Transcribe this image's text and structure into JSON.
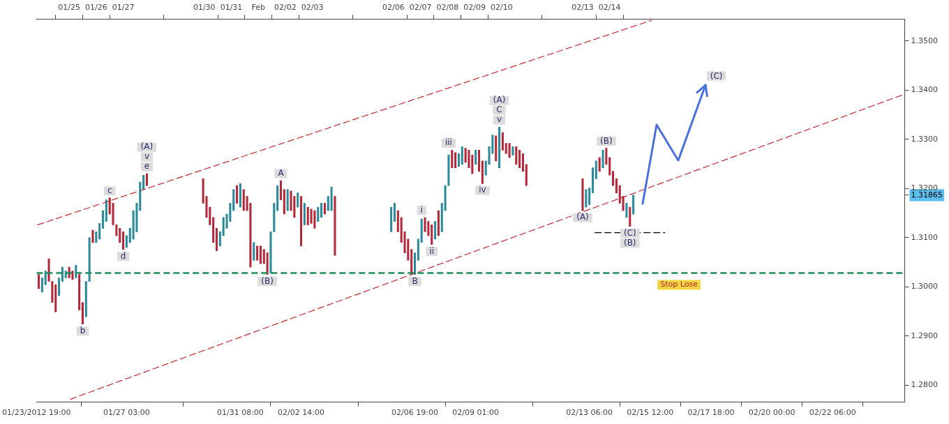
{
  "chart_data": {
    "type": "candlestick",
    "x": [
      "2012-01-23T21:00",
      "2012-01-24T00:00",
      "2012-01-24T03:00",
      "2012-01-24T06:00",
      "2012-01-24T09:00",
      "2012-01-24T12:00",
      "2012-01-24T15:00",
      "2012-01-24T18:00",
      "2012-01-24T21:00",
      "2012-01-25T00:00",
      "2012-01-25T03:00",
      "2012-01-25T06:00",
      "2012-01-25T09:00",
      "2012-01-25T12:00",
      "2012-01-25T15:00",
      "2012-01-25T18:00",
      "2012-01-25T21:00",
      "2012-01-26T00:00",
      "2012-01-26T03:00",
      "2012-01-26T06:00",
      "2012-01-26T09:00",
      "2012-01-26T12:00",
      "2012-01-26T15:00",
      "2012-01-26T18:00",
      "2012-01-26T21:00",
      "2012-01-27T00:00",
      "2012-01-27T03:00",
      "2012-01-27T06:00",
      "2012-01-27T09:00",
      "2012-01-27T12:00",
      "2012-01-27T15:00",
      "2012-01-27T18:00",
      "2012-01-27T21:00",
      "2012-01-29T23:00",
      "2012-01-30T02:00",
      "2012-01-30T05:00",
      "2012-01-30T08:00",
      "2012-01-30T11:00",
      "2012-01-30T14:00",
      "2012-01-30T17:00",
      "2012-01-30T20:00",
      "2012-01-30T23:00",
      "2012-01-31T02:00",
      "2012-01-31T05:00",
      "2012-01-31T08:00",
      "2012-01-31T11:00",
      "2012-01-31T14:00",
      "2012-01-31T17:00",
      "2012-01-31T20:00",
      "2012-01-31T23:00",
      "2012-02-01T02:00",
      "2012-02-01T05:00",
      "2012-02-01T08:00",
      "2012-02-01T11:00",
      "2012-02-01T14:00",
      "2012-02-01T17:00",
      "2012-02-01T20:00",
      "2012-02-01T23:00",
      "2012-02-02T02:00",
      "2012-02-02T05:00",
      "2012-02-02T08:00",
      "2012-02-02T11:00",
      "2012-02-02T14:00",
      "2012-02-02T17:00",
      "2012-02-02T20:00",
      "2012-02-02T23:00",
      "2012-02-03T02:00",
      "2012-02-03T05:00",
      "2012-02-03T08:00",
      "2012-02-03T11:00",
      "2012-02-03T14:00",
      "2012-02-03T17:00",
      "2012-02-03T20:00",
      "2012-02-05T22:00",
      "2012-02-06T01:00",
      "2012-02-06T04:00",
      "2012-02-06T07:00",
      "2012-02-06T10:00",
      "2012-02-06T13:00",
      "2012-02-06T16:00",
      "2012-02-06T19:00",
      "2012-02-06T22:00",
      "2012-02-07T01:00",
      "2012-02-07T04:00",
      "2012-02-07T07:00",
      "2012-02-07T10:00",
      "2012-02-07T13:00",
      "2012-02-07T16:00",
      "2012-02-07T19:00",
      "2012-02-07T22:00",
      "2012-02-08T01:00",
      "2012-02-08T04:00",
      "2012-02-08T07:00",
      "2012-02-08T10:00",
      "2012-02-08T13:00",
      "2012-02-08T16:00",
      "2012-02-08T19:00",
      "2012-02-08T22:00",
      "2012-02-09T01:00",
      "2012-02-09T04:00",
      "2012-02-09T07:00",
      "2012-02-09T10:00",
      "2012-02-09T13:00",
      "2012-02-09T16:00",
      "2012-02-09T19:00",
      "2012-02-09T22:00",
      "2012-02-10T01:00",
      "2012-02-10T04:00",
      "2012-02-10T07:00",
      "2012-02-10T10:00",
      "2012-02-10T13:00",
      "2012-02-10T16:00",
      "2012-02-10T19:00",
      "2012-02-10T22:00",
      "2012-02-13T00:00",
      "2012-02-13T03:00",
      "2012-02-13T06:00",
      "2012-02-13T09:00",
      "2012-02-13T12:00",
      "2012-02-13T15:00",
      "2012-02-13T18:00",
      "2012-02-13T21:00",
      "2012-02-14T00:00",
      "2012-02-14T03:00",
      "2012-02-14T06:00",
      "2012-02-14T09:00",
      "2012-02-14T12:00",
      "2012-02-14T15:00",
      "2012-02-14T18:00",
      "2012-02-14T21:00"
    ],
    "ohlc": [
      [
        1.3025,
        1.3025,
        1.2996,
        1.2996
      ],
      [
        1.2989,
        1.3018,
        1.2989,
        1.3018
      ],
      [
        1.3004,
        1.3032,
        1.3004,
        1.3032
      ],
      [
        1.3057,
        1.3057,
        1.3011,
        1.3011
      ],
      [
        1.3011,
        1.3011,
        1.2968,
        1.2968
      ],
      [
        1.3004,
        1.3004,
        1.2949,
        1.2949
      ],
      [
        1.2982,
        1.3018,
        1.2982,
        1.3018
      ],
      [
        1.3011,
        1.304,
        1.3011,
        1.304
      ],
      [
        1.3018,
        1.3032,
        1.3018,
        1.3032
      ],
      [
        1.304,
        1.304,
        1.3018,
        1.3018
      ],
      [
        1.3032,
        1.3032,
        1.3015,
        1.3015
      ],
      [
        1.3018,
        1.3044,
        1.3018,
        1.3044
      ],
      [
        1.3025,
        1.3025,
        1.2953,
        1.2953
      ],
      [
        1.2968,
        1.2968,
        1.2924,
        1.2924
      ],
      [
        1.2939,
        1.3011,
        1.2939,
        1.3011
      ],
      [
        1.3011,
        1.31,
        1.3011,
        1.31
      ],
      [
        1.3115,
        1.3115,
        1.309,
        1.309
      ],
      [
        1.309,
        1.3112,
        1.309,
        1.3112
      ],
      [
        1.3097,
        1.3129,
        1.3097,
        1.3129
      ],
      [
        1.3119,
        1.3155,
        1.3119,
        1.3155
      ],
      [
        1.3133,
        1.3177,
        1.3133,
        1.3177
      ],
      [
        1.3181,
        1.3181,
        1.3148,
        1.3148
      ],
      [
        1.317,
        1.317,
        1.3126,
        1.3126
      ],
      [
        1.3126,
        1.3126,
        1.3104,
        1.3104
      ],
      [
        1.3119,
        1.3119,
        1.309,
        1.309
      ],
      [
        1.3112,
        1.3112,
        1.3076,
        1.3076
      ],
      [
        1.308,
        1.3104,
        1.308,
        1.3104
      ],
      [
        1.309,
        1.3119,
        1.309,
        1.3119
      ],
      [
        1.3097,
        1.3155,
        1.3097,
        1.3155
      ],
      [
        1.3112,
        1.317,
        1.3112,
        1.317
      ],
      [
        1.3155,
        1.3213,
        1.3155,
        1.3213
      ],
      [
        1.3198,
        1.3227,
        1.3198,
        1.3227
      ],
      [
        1.323,
        1.323,
        1.3206,
        1.3206
      ],
      [
        1.322,
        1.322,
        1.317,
        1.317
      ],
      [
        1.3184,
        1.3184,
        1.3141,
        1.3141
      ],
      [
        1.3162,
        1.3162,
        1.3126,
        1.3126
      ],
      [
        1.3141,
        1.3141,
        1.309,
        1.309
      ],
      [
        1.3119,
        1.3119,
        1.3073,
        1.3073
      ],
      [
        1.3083,
        1.3112,
        1.3083,
        1.3112
      ],
      [
        1.3104,
        1.3141,
        1.3104,
        1.3141
      ],
      [
        1.3119,
        1.3148,
        1.3119,
        1.3148
      ],
      [
        1.3133,
        1.317,
        1.3133,
        1.317
      ],
      [
        1.3155,
        1.3198,
        1.3155,
        1.3198
      ],
      [
        1.3206,
        1.3206,
        1.317,
        1.317
      ],
      [
        1.3162,
        1.321,
        1.3162,
        1.321
      ],
      [
        1.3198,
        1.3198,
        1.3155,
        1.3155
      ],
      [
        1.3184,
        1.3184,
        1.3155,
        1.3155
      ],
      [
        1.317,
        1.317,
        1.304,
        1.304
      ],
      [
        1.3054,
        1.309,
        1.3054,
        1.309
      ],
      [
        1.3083,
        1.3083,
        1.3054,
        1.3054
      ],
      [
        1.3083,
        1.3083,
        1.3047,
        1.3047
      ],
      [
        1.3076,
        1.3076,
        1.3047,
        1.3047
      ],
      [
        1.3069,
        1.3069,
        1.3025,
        1.3025
      ],
      [
        1.3028,
        1.3112,
        1.3028,
        1.3112
      ],
      [
        1.3112,
        1.317,
        1.3112,
        1.317
      ],
      [
        1.3155,
        1.3206,
        1.3155,
        1.3206
      ],
      [
        1.3216,
        1.3216,
        1.3177,
        1.3177
      ],
      [
        1.3198,
        1.3198,
        1.3148,
        1.3148
      ],
      [
        1.3155,
        1.3198,
        1.3155,
        1.3198
      ],
      [
        1.3195,
        1.3195,
        1.3155,
        1.3155
      ],
      [
        1.3184,
        1.3184,
        1.3141,
        1.3141
      ],
      [
        1.3162,
        1.3191,
        1.3162,
        1.3191
      ],
      [
        1.3184,
        1.3184,
        1.3083,
        1.3083
      ],
      [
        1.3126,
        1.317,
        1.3126,
        1.317
      ],
      [
        1.3162,
        1.3162,
        1.3126,
        1.3126
      ],
      [
        1.3158,
        1.3158,
        1.3129,
        1.3129
      ],
      [
        1.3155,
        1.3155,
        1.3119,
        1.3119
      ],
      [
        1.3133,
        1.3162,
        1.3133,
        1.3162
      ],
      [
        1.3141,
        1.317,
        1.3141,
        1.317
      ],
      [
        1.317,
        1.317,
        1.3148,
        1.3148
      ],
      [
        1.3155,
        1.3184,
        1.3155,
        1.3184
      ],
      [
        1.3155,
        1.3203,
        1.3155,
        1.3203
      ],
      [
        1.3184,
        1.3184,
        1.3064,
        1.3064
      ],
      [
        1.3112,
        1.3162,
        1.3112,
        1.3162
      ],
      [
        1.3133,
        1.317,
        1.3133,
        1.317
      ],
      [
        1.3155,
        1.3155,
        1.3112,
        1.3112
      ],
      [
        1.3141,
        1.3141,
        1.309,
        1.309
      ],
      [
        1.3112,
        1.3112,
        1.3069,
        1.3069
      ],
      [
        1.3097,
        1.3097,
        1.3054,
        1.3054
      ],
      [
        1.3076,
        1.3076,
        1.3025,
        1.3025
      ],
      [
        1.3025,
        1.3069,
        1.3025,
        1.3069
      ],
      [
        1.3054,
        1.3097,
        1.3054,
        1.3097
      ],
      [
        1.309,
        1.3138,
        1.309,
        1.3138
      ],
      [
        1.3141,
        1.3141,
        1.3112,
        1.3112
      ],
      [
        1.3133,
        1.3133,
        1.3104,
        1.3104
      ],
      [
        1.3126,
        1.3126,
        1.3086,
        1.3086
      ],
      [
        1.3097,
        1.3133,
        1.3097,
        1.3133
      ],
      [
        1.3155,
        1.3155,
        1.3104,
        1.3104
      ],
      [
        1.3112,
        1.317,
        1.3112,
        1.317
      ],
      [
        1.3155,
        1.3206,
        1.3155,
        1.3206
      ],
      [
        1.3206,
        1.3268,
        1.3206,
        1.3268
      ],
      [
        1.3278,
        1.3278,
        1.3242,
        1.3242
      ],
      [
        1.3273,
        1.3273,
        1.3242,
        1.3242
      ],
      [
        1.3245,
        1.3271,
        1.3245,
        1.3271
      ],
      [
        1.3249,
        1.3285,
        1.3249,
        1.3285
      ],
      [
        1.3282,
        1.3282,
        1.3253,
        1.3253
      ],
      [
        1.3278,
        1.3278,
        1.3242,
        1.3242
      ],
      [
        1.3268,
        1.3268,
        1.323,
        1.323
      ],
      [
        1.3249,
        1.3278,
        1.3249,
        1.3278
      ],
      [
        1.3278,
        1.3278,
        1.3235,
        1.3235
      ],
      [
        1.3256,
        1.3256,
        1.321,
        1.321
      ],
      [
        1.3227,
        1.3256,
        1.3227,
        1.3256
      ],
      [
        1.3249,
        1.3285,
        1.3249,
        1.3285
      ],
      [
        1.3271,
        1.3309,
        1.3271,
        1.3309
      ],
      [
        1.3307,
        1.3307,
        1.3256,
        1.3256
      ],
      [
        1.3242,
        1.3325,
        1.3242,
        1.3325
      ],
      [
        1.3314,
        1.3314,
        1.3278,
        1.3278
      ],
      [
        1.3292,
        1.3292,
        1.3271,
        1.3271
      ],
      [
        1.3292,
        1.3292,
        1.3263,
        1.3263
      ],
      [
        1.3268,
        1.3285,
        1.3268,
        1.3285
      ],
      [
        1.3285,
        1.3285,
        1.3249,
        1.3249
      ],
      [
        1.3278,
        1.3278,
        1.3242,
        1.3242
      ],
      [
        1.3271,
        1.3271,
        1.3235,
        1.3235
      ],
      [
        1.3249,
        1.3249,
        1.3206,
        1.3206
      ],
      [
        1.322,
        1.322,
        1.3155,
        1.3155
      ],
      [
        1.3162,
        1.3198,
        1.3162,
        1.3198
      ],
      [
        1.3167,
        1.3201,
        1.3167,
        1.3201
      ],
      [
        1.3191,
        1.3242,
        1.3191,
        1.3242
      ],
      [
        1.322,
        1.3256,
        1.322,
        1.3256
      ],
      [
        1.3263,
        1.3263,
        1.3235,
        1.3235
      ],
      [
        1.3242,
        1.3278,
        1.3242,
        1.3278
      ],
      [
        1.3282,
        1.3282,
        1.3249,
        1.3249
      ],
      [
        1.3263,
        1.3263,
        1.3227,
        1.3227
      ],
      [
        1.3235,
        1.3235,
        1.3206,
        1.3206
      ],
      [
        1.322,
        1.322,
        1.3191,
        1.3191
      ],
      [
        1.3206,
        1.3206,
        1.317,
        1.317
      ],
      [
        1.3184,
        1.3184,
        1.3155,
        1.3155
      ],
      [
        1.3141,
        1.317,
        1.3141,
        1.317
      ],
      [
        1.3162,
        1.3162,
        1.3123,
        1.3123
      ],
      [
        1.3148,
        1.31865,
        1.3148,
        1.31865
      ]
    ],
    "colors": [
      "#b3283a",
      "#2b8a9a",
      "#2b8a9a",
      "#b3283a",
      "#b3283a",
      "#b3283a",
      "#2b8a9a",
      "#2b8a9a",
      "#2b8a9a",
      "#b3283a",
      "#b3283a",
      "#2b8a9a",
      "#b3283a",
      "#b3283a",
      "#2b8a9a",
      "#2b8a9a",
      "#b3283a",
      "#2b8a9a",
      "#2b8a9a",
      "#2b8a9a",
      "#2b8a9a",
      "#b3283a",
      "#b3283a",
      "#b3283a",
      "#b3283a",
      "#b3283a",
      "#2b8a9a",
      "#2b8a9a",
      "#2b8a9a",
      "#2b8a9a",
      "#2b8a9a",
      "#2b8a9a",
      "#b3283a",
      "#b3283a",
      "#b3283a",
      "#b3283a",
      "#b3283a",
      "#b3283a",
      "#2b8a9a",
      "#2b8a9a",
      "#2b8a9a",
      "#2b8a9a",
      "#2b8a9a",
      "#b3283a",
      "#2b8a9a",
      "#b3283a",
      "#b3283a",
      "#b3283a",
      "#2b8a9a",
      "#b3283a",
      "#b3283a",
      "#b3283a",
      "#b3283a",
      "#2b8a9a",
      "#2b8a9a",
      "#2b8a9a",
      "#b3283a",
      "#b3283a",
      "#2b8a9a",
      "#b3283a",
      "#b3283a",
      "#2b8a9a",
      "#b3283a",
      "#2b8a9a",
      "#b3283a",
      "#b3283a",
      "#b3283a",
      "#2b8a9a",
      "#2b8a9a",
      "#b3283a",
      "#2b8a9a",
      "#2b8a9a",
      "#b3283a",
      "#2b8a9a",
      "#2b8a9a",
      "#b3283a",
      "#b3283a",
      "#b3283a",
      "#b3283a",
      "#b3283a",
      "#2b8a9a",
      "#2b8a9a",
      "#2b8a9a",
      "#b3283a",
      "#b3283a",
      "#b3283a",
      "#2b8a9a",
      "#b3283a",
      "#2b8a9a",
      "#2b8a9a",
      "#2b8a9a",
      "#b3283a",
      "#b3283a",
      "#2b8a9a",
      "#2b8a9a",
      "#b3283a",
      "#b3283a",
      "#b3283a",
      "#2b8a9a",
      "#b3283a",
      "#b3283a",
      "#2b8a9a",
      "#2b8a9a",
      "#2b8a9a",
      "#b3283a",
      "#2b8a9a",
      "#b3283a",
      "#b3283a",
      "#b3283a",
      "#2b8a9a",
      "#b3283a",
      "#b3283a",
      "#b3283a",
      "#b3283a",
      "#b3283a",
      "#2b8a9a",
      "#2b8a9a",
      "#2b8a9a",
      "#2b8a9a",
      "#b3283a",
      "#2b8a9a",
      "#b3283a",
      "#b3283a",
      "#b3283a",
      "#b3283a",
      "#b3283a",
      "#b3283a",
      "#2b8a9a",
      "#b3283a",
      "#2b8a9a"
    ],
    "series": [
      {
        "type": "line",
        "x": [
          "2012-01-23T20:00",
          "2012-02-15T13:00"
        ],
        "values": [
          1.3126,
          1.3542
        ],
        "color": "#c0282d",
        "line_style": "dashed"
      },
      {
        "type": "line",
        "x": [
          "2012-01-25T01:00",
          "2012-02-24T22:00"
        ],
        "values": [
          1.2771,
          1.3392
        ],
        "color": "#c0282d",
        "line_style": "dashed"
      },
      {
        "type": "line",
        "x": [
          "2012-02-13T11:00",
          "2012-02-16T01:00"
        ],
        "values": [
          1.311,
          1.311
        ],
        "color": "#000000",
        "line_style": "dashed"
      }
    ],
    "ref_lines": [
      {
        "axis": "y",
        "value": 1.3028,
        "label": "Stop Lose",
        "color": "#1e8c5a",
        "line_style": "dashed"
      }
    ],
    "annotations": [
      {
        "text": "(A)",
        "x": "2012-01-27T21:00",
        "y": 1.323
      },
      {
        "text": "v",
        "x": "2012-01-27T21:00",
        "y": 1.323
      },
      {
        "text": "e",
        "x": "2012-01-27T21:00",
        "y": 1.323
      },
      {
        "text": "c",
        "x": "2012-01-26T12:00",
        "y": 1.3181
      },
      {
        "text": "d",
        "x": "2012-01-27T00:00",
        "y": 1.3076
      },
      {
        "text": "b",
        "x": "2012-01-25T12:00",
        "y": 1.2924
      },
      {
        "text": "(B)",
        "x": "2012-02-01T08:00",
        "y": 1.3025
      },
      {
        "text": "A",
        "x": "2012-02-01T20:00",
        "y": 1.3216
      },
      {
        "text": "B",
        "x": "2012-02-06T19:00",
        "y": 1.3025
      },
      {
        "text": "i",
        "x": "2012-02-07T01:00",
        "y": 1.3138
      },
      {
        "text": "ii",
        "x": "2012-02-07T10:00",
        "y": 1.3086
      },
      {
        "text": "iii",
        "x": "2012-02-08T01:00",
        "y": 1.3268
      },
      {
        "text": "iv",
        "x": "2012-02-09T07:00",
        "y": 1.321
      },
      {
        "text": "(A)",
        "x": "2012-02-09T22:00",
        "y": 1.3325
      },
      {
        "text": "C",
        "x": "2012-02-09T22:00",
        "y": 1.3325
      },
      {
        "text": "v",
        "x": "2012-02-09T22:00",
        "y": 1.3325
      },
      {
        "text": "(A)",
        "x": "2012-02-13T00:00",
        "y": 1.3155
      },
      {
        "text": "(B)",
        "x": "2012-02-13T21:00",
        "y": 1.3282
      },
      {
        "text": "(C)",
        "x": "2012-02-14T18:00",
        "y": 1.3123
      },
      {
        "text": "(B)",
        "x": "2012-02-14T18:00",
        "y": 1.3123
      },
      "(C)"
    ],
    "xlim": [
      "2012-01-23T19:00",
      "2012-02-24T22:00"
    ],
    "xticks": [
      {
        "value": "2012-01-23T19:00",
        "label": "01/23/2012 19:00"
      },
      {
        "value": "2012-01-27T03:00",
        "label": "01/27 03:00"
      },
      {
        "value": "2012-01-31T08:00",
        "label": "01/31 08:00"
      },
      {
        "value": "2012-02-02T14:00",
        "label": "02/02 14:00"
      },
      {
        "value": "2012-02-06T19:00",
        "label": "02/06 19:00"
      },
      {
        "value": "2012-02-09T01:00",
        "label": "02/09 01:00"
      },
      {
        "value": "2012-02-13T06:00",
        "label": "02/13 06:00"
      },
      {
        "value": "2012-02-15T12:00",
        "label": "02/15 12:00"
      },
      {
        "value": "2012-02-17T18:00",
        "label": "02/17 18:00"
      },
      {
        "value": "2012-02-20T00:00",
        "label": "02/20 00:00"
      },
      {
        "value": "2012-02-22T06:00",
        "label": "02/22 06:00"
      }
    ],
    "x2lim": [
      "2012-01-23T19:00",
      "2012-02-24T22:00"
    ],
    "x2ticks": [
      {
        "value": "2012-01-25",
        "label": "01/25"
      },
      {
        "value": "2012-01-26",
        "label": "01/26"
      },
      {
        "value": "2012-01-27",
        "label": "01/27"
      },
      {
        "value": "2012-01-30",
        "label": "01/30"
      },
      {
        "value": "2012-01-31",
        "label": "01/31"
      },
      {
        "value": "2012-02-01",
        "label": "Feb"
      },
      {
        "value": "2012-02-02",
        "label": "02/02"
      },
      {
        "value": "2012-02-03",
        "label": "02/03"
      },
      {
        "value": "2012-02-06",
        "label": "02/06"
      },
      {
        "value": "2012-02-07",
        "label": "02/07"
      },
      {
        "value": "2012-02-08",
        "label": "02/08"
      },
      {
        "value": "2012-02-09",
        "label": "02/09"
      },
      {
        "value": "2012-02-10",
        "label": "02/10"
      },
      {
        "value": "2012-02-13",
        "label": "02/13"
      },
      {
        "value": "2012-02-14",
        "label": "02/14"
      }
    ],
    "ylim": [
      1.2765,
      1.3545
    ],
    "yticks": [
      {
        "value": 1.28,
        "label": "1.2800"
      },
      {
        "value": 1.29,
        "label": "1.2900"
      },
      {
        "value": 1.3,
        "label": "1.3000"
      },
      {
        "value": 1.31,
        "label": "1.3100"
      },
      {
        "value": 1.31865,
        "label": "1.31865"
      },
      {
        "value": 1.32,
        "label": "1.3200"
      },
      {
        "value": 1.33,
        "label": "1.3300"
      },
      {
        "value": 1.34,
        "label": "1.3400"
      },
      {
        "value": 1.35,
        "label": "1.3500"
      }
    ]
  }
}
